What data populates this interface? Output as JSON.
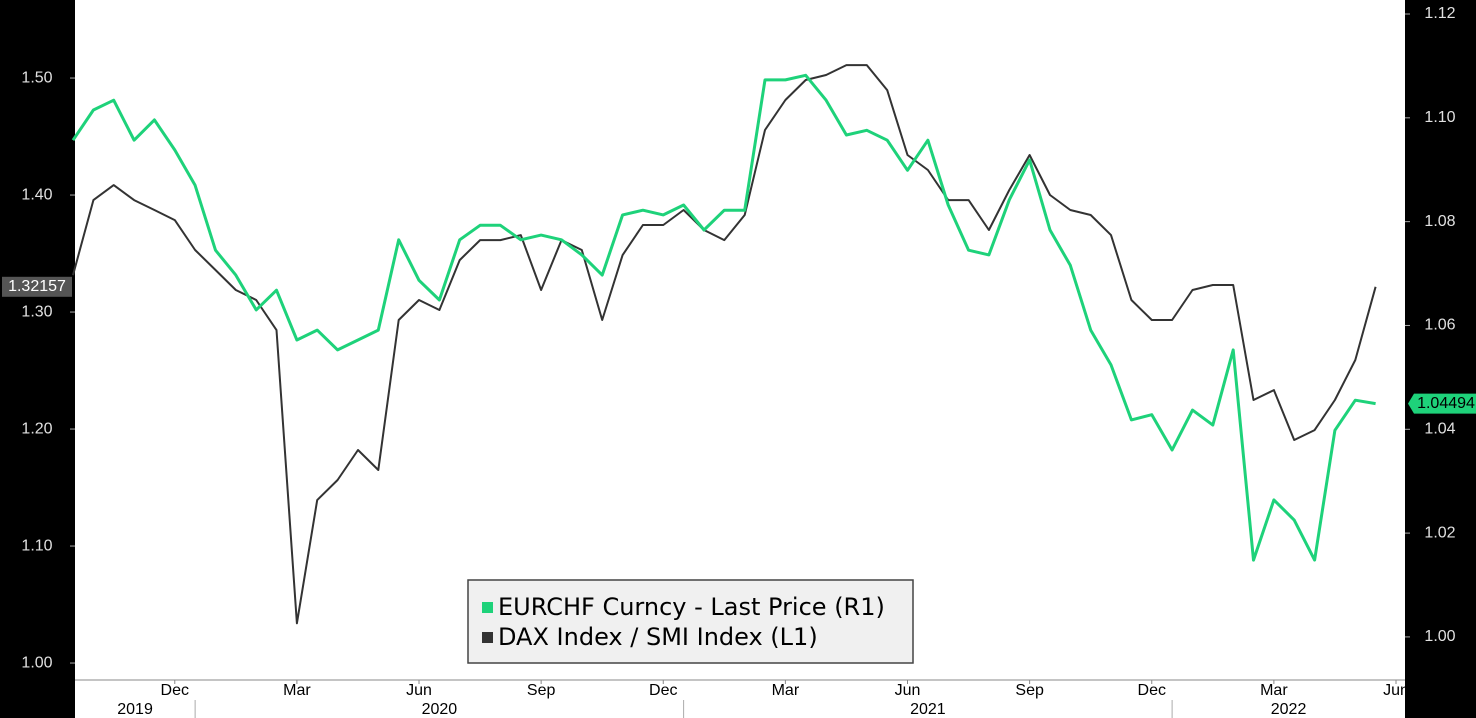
{
  "chart_data": {
    "type": "line",
    "categories": [
      null,
      null,
      null,
      null,
      null,
      "Dec",
      null,
      null,
      null,
      null,
      null,
      "Mar",
      null,
      null,
      null,
      null,
      null,
      "Jun",
      null,
      null,
      null,
      null,
      null,
      "Sep",
      null,
      null,
      null,
      null,
      null,
      "Dec",
      null,
      null,
      null,
      null,
      null,
      "Mar",
      null,
      null,
      null,
      null,
      null,
      "Jun",
      null,
      null,
      null,
      null,
      null,
      "Sep",
      null,
      null,
      null,
      null,
      null,
      "Dec",
      null,
      null,
      null,
      null,
      null,
      "Mar",
      null,
      null,
      null,
      null,
      null,
      "Jun"
    ],
    "years": [
      "2019",
      "2020",
      "2021",
      "2022"
    ],
    "year_breaks": [
      6,
      30,
      54
    ],
    "series": [
      {
        "name": "EURCHF Curncy - Last Price (R1)",
        "color": "#1ed27a",
        "axis": "y2",
        "last_label": "1.04494",
        "values": [
          1.0957,
          1.1015,
          1.1034,
          1.0957,
          1.0996,
          1.0938,
          1.087,
          1.0745,
          1.0697,
          1.063,
          1.0668,
          1.0572,
          1.0591,
          1.0553,
          1.0572,
          1.0591,
          1.0765,
          1.0687,
          1.0649,
          1.0765,
          1.0793,
          1.0793,
          1.0765,
          1.0774,
          1.0765,
          1.0736,
          1.0697,
          1.0813,
          1.0822,
          1.0813,
          1.0832,
          1.0784,
          1.0822,
          1.0822,
          1.1073,
          1.1073,
          1.1082,
          1.1034,
          1.0967,
          1.0976,
          1.0957,
          1.0899,
          1.0957,
          1.0832,
          1.0745,
          1.0736,
          1.0842,
          1.0919,
          1.0784,
          1.0716,
          1.0591,
          1.0524,
          1.0418,
          1.0428,
          1.036,
          1.0437,
          1.0408,
          1.0553,
          1.0148,
          1.0264,
          1.0225,
          1.0148,
          1.0398,
          1.0456,
          1.04494,
          null
        ]
      },
      {
        "name": "DAX Index / SMI Index (L1)",
        "color": "#333333",
        "axis": "y",
        "last_label": "1.32157",
        "values": [
          1.3316,
          1.3957,
          1.4085,
          1.3957,
          1.3872,
          1.3786,
          1.353,
          1.3359,
          1.3188,
          1.3103,
          1.2846,
          1.034,
          1.1393,
          1.1564,
          1.1821,
          1.165,
          1.2932,
          1.3103,
          1.3017,
          1.3444,
          1.3615,
          1.3615,
          1.3658,
          1.3188,
          1.3615,
          1.353,
          1.2932,
          1.3487,
          1.3744,
          1.3744,
          1.3872,
          1.3701,
          1.3615,
          1.3829,
          1.4556,
          1.4812,
          1.4983,
          1.5026,
          1.5111,
          1.5111,
          1.4897,
          1.4342,
          1.4214,
          1.3957,
          1.3957,
          1.3701,
          1.4043,
          1.4342,
          1.4,
          1.3872,
          1.3829,
          1.3658,
          1.3103,
          1.2932,
          1.2932,
          1.3188,
          1.3231,
          1.3231,
          1.2248,
          1.2333,
          1.1906,
          1.1991,
          1.2248,
          1.259,
          1.32157,
          null
        ]
      }
    ],
    "ylim": [
      0.9855,
      1.5667
    ],
    "yticks": [
      {
        "value": 1,
        "label": "1.00"
      },
      {
        "value": 1.1,
        "label": "1.10"
      },
      {
        "value": 1.2,
        "label": "1.20"
      },
      {
        "value": 1.3,
        "label": "1.30"
      },
      {
        "value": 1.4,
        "label": "1.40"
      },
      {
        "value": 1.5,
        "label": "1.50"
      }
    ],
    "y2lim": [
      0.9917,
      1.1227
    ],
    "y2ticks": [
      {
        "value": 1,
        "label": "1.00"
      },
      1.02,
      1.04,
      1.06,
      1.08,
      {
        "value": 1.1,
        "label": "1.10"
      },
      1.12
    ],
    "grid": false,
    "legend": "bottom-center"
  }
}
